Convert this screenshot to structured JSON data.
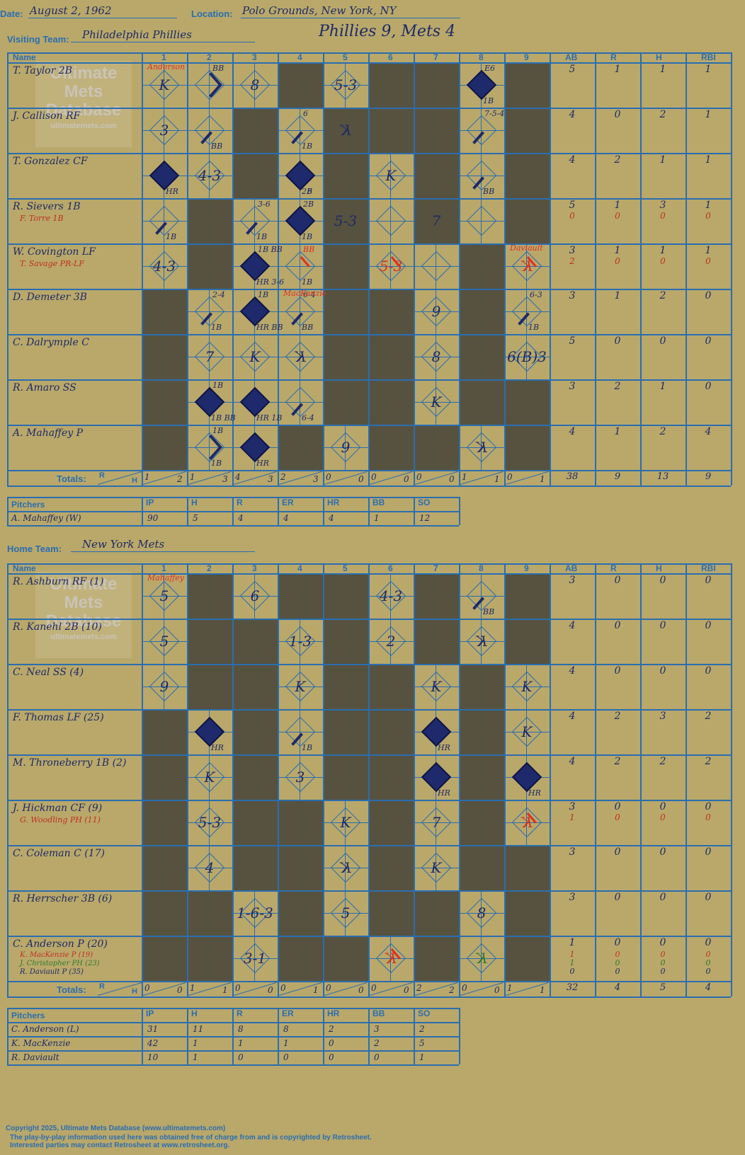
{
  "header": {
    "date_label": "Date:",
    "date": "August 2, 1962",
    "location_label": "Location:",
    "location": "Polo Grounds, New York, NY",
    "visiting_label": "Visiting Team:",
    "visiting_team": "Philadelphia Phillies",
    "result": "Phillies 9, Mets 4",
    "home_label": "Home Team:",
    "home_team": "New York Mets"
  },
  "watermark": {
    "line1": "Ultimate",
    "line2": "Mets",
    "line3": "Database",
    "line4": "ultimatemets.com"
  },
  "columns": {
    "name": "Name",
    "innings": [
      "1",
      "2",
      "3",
      "4",
      "5",
      "6",
      "7",
      "8",
      "9"
    ],
    "stats": [
      "AB",
      "R",
      "H",
      "RBI"
    ],
    "totals": "Totals:",
    "r": "R",
    "h": "H"
  },
  "pitch_cols": {
    "title": "Pitchers",
    "cols": [
      "IP",
      "H",
      "R",
      "ER",
      "HR",
      "BB",
      "SO"
    ]
  },
  "visitors": {
    "players": [
      {
        "name": "T. Taylor 2B",
        "stats": [
          "5",
          "1",
          "1",
          "1"
        ]
      },
      {
        "name": "J. Callison RF",
        "stats": [
          "4",
          "0",
          "2",
          "1"
        ]
      },
      {
        "name": "T. Gonzalez CF",
        "stats": [
          "4",
          "2",
          "1",
          "1"
        ]
      },
      {
        "name": "R. Sievers 1B",
        "sub": "F. Torre 1B",
        "stats": [
          "5",
          "1",
          "3",
          "1"
        ],
        "sub_stats": [
          "0",
          "0",
          "0",
          "0"
        ]
      },
      {
        "name": "W. Covington LF",
        "sub": "T. Savage PR-LF",
        "stats": [
          "3",
          "1",
          "1",
          "1"
        ],
        "sub_stats": [
          "2",
          "0",
          "0",
          "0"
        ]
      },
      {
        "name": "D. Demeter 3B",
        "stats": [
          "3",
          "1",
          "2",
          "0"
        ]
      },
      {
        "name": "C. Dalrymple C",
        "stats": [
          "5",
          "0",
          "0",
          "0"
        ]
      },
      {
        "name": "R. Amaro SS",
        "stats": [
          "3",
          "2",
          "1",
          "0"
        ]
      },
      {
        "name": "A. Mahaffey P",
        "stats": [
          "4",
          "1",
          "2",
          "4"
        ]
      }
    ],
    "totals": [
      [
        "1",
        "2"
      ],
      [
        "1",
        "3"
      ],
      [
        "4",
        "3"
      ],
      [
        "2",
        "3"
      ],
      [
        "0",
        "0"
      ],
      [
        "0",
        "0"
      ],
      [
        "0",
        "0"
      ],
      [
        "1",
        "1"
      ],
      [
        "0",
        "1"
      ]
    ],
    "total_stats": [
      "38",
      "9",
      "13",
      "9"
    ],
    "pitchers": [
      {
        "name": "A. Mahaffey (W)",
        "line": [
          "90",
          "5",
          "4",
          "4",
          "4",
          "1",
          "12"
        ]
      }
    ]
  },
  "home": {
    "players": [
      {
        "name": "R. Ashburn RF (1)",
        "stats": [
          "3",
          "0",
          "0",
          "0"
        ]
      },
      {
        "name": "R. Kanehl 2B (10)",
        "stats": [
          "4",
          "0",
          "0",
          "0"
        ]
      },
      {
        "name": "C. Neal SS (4)",
        "stats": [
          "4",
          "0",
          "0",
          "0"
        ]
      },
      {
        "name": "F. Thomas LF (25)",
        "stats": [
          "4",
          "2",
          "3",
          "2"
        ]
      },
      {
        "name": "M. Throneberry 1B (2)",
        "stats": [
          "4",
          "2",
          "2",
          "2"
        ]
      },
      {
        "name": "J. Hickman CF (9)",
        "sub": "G. Woodling PH (11)",
        "stats": [
          "3",
          "0",
          "0",
          "0"
        ],
        "sub_stats": [
          "1",
          "0",
          "0",
          "0"
        ]
      },
      {
        "name": "C. Coleman C (17)",
        "stats": [
          "3",
          "0",
          "0",
          "0"
        ]
      },
      {
        "name": "R. Herrscher 3B (6)",
        "stats": [
          "3",
          "0",
          "0",
          "0"
        ]
      },
      {
        "name": "C. Anderson P (20)",
        "subs": [
          "K. MacKenzie P (19)",
          "J. Christopher PH (23)",
          "R. Daviault P (35)"
        ],
        "stats": [
          "1",
          "0",
          "0",
          "0"
        ],
        "subs_stats": [
          [
            "1",
            "0",
            "0",
            "0"
          ],
          [
            "1",
            "0",
            "0",
            "0"
          ],
          [
            "0",
            "0",
            "0",
            "0"
          ]
        ]
      }
    ],
    "totals": [
      [
        "0",
        "0"
      ],
      [
        "1",
        "1"
      ],
      [
        "0",
        "0"
      ],
      [
        "0",
        "1"
      ],
      [
        "0",
        "0"
      ],
      [
        "0",
        "0"
      ],
      [
        "2",
        "2"
      ],
      [
        "0",
        "0"
      ],
      [
        "1",
        "1"
      ]
    ],
    "total_stats": [
      "32",
      "4",
      "5",
      "4"
    ],
    "pitchers": [
      {
        "name": "C. Anderson (L)",
        "line": [
          "31",
          "11",
          "8",
          "8",
          "2",
          "3",
          "2"
        ]
      },
      {
        "name": "K. MacKenzie",
        "line": [
          "42",
          "1",
          "1",
          "1",
          "0",
          "2",
          "5"
        ]
      },
      {
        "name": "R. Daviault",
        "line": [
          "10",
          "1",
          "0",
          "0",
          "0",
          "0",
          "1"
        ]
      }
    ]
  },
  "plays": {
    "v": [
      [
        {
          "m": "K",
          "n": "Anderson",
          "nc": "#E03020"
        },
        {
          "s": "BB",
          "bb": 1,
          "diag": 1
        },
        {
          "m": "8"
        },
        null,
        {
          "m": "5-3"
        },
        null,
        null,
        {
          "s": "E6",
          "run": 1,
          "b": "1B"
        },
        null
      ],
      [
        {
          "m": "3"
        },
        {
          "b": "BB",
          "half": 1
        },
        null,
        {
          "s": "6",
          "b": "1B",
          "half": 1
        },
        {
          "m": "K",
          "rev": 1
        },
        null,
        null,
        {
          "s": "7-5-4",
          "half": 1
        },
        null
      ],
      [
        {
          "run": 1,
          "b": "HR"
        },
        {
          "m": "4-3"
        },
        null,
        {
          "run": 1,
          "b": "2B",
          "b2": "6"
        },
        null,
        {
          "m": "K"
        },
        null,
        {
          "b": "BB",
          "half": 1
        },
        null
      ],
      [
        {
          "b": "1B",
          "half": 1
        },
        null,
        {
          "s": "3-6",
          "b": "1B",
          "half": 1
        },
        {
          "s": "2B",
          "run": 1,
          "b": "1B"
        },
        {
          "m": "5-3"
        },
        null,
        {
          "m": "7"
        },
        null,
        null
      ],
      [
        {
          "m": "4-3"
        },
        null,
        {
          "s": "1B BB",
          "run": 1,
          "b": "HR 3-6"
        },
        {
          "s": "BB",
          "sc": "#E03020",
          "b": "1B",
          "red": 1
        },
        null,
        {
          "m": "5-3",
          "red": 1
        },
        null,
        null,
        {
          "m": "K",
          "rev": 1,
          "red": 1,
          "n": "Daviault",
          "nc": "#E03020"
        }
      ],
      [
        null,
        {
          "s": "2-4",
          "b": "1B",
          "half": 1
        },
        {
          "s": "1B",
          "run": 1,
          "b": "HR BB"
        },
        {
          "s": "6-4",
          "n": "MacKenzie",
          "nc": "#E03020",
          "b": "BB",
          "half": 1
        },
        null,
        null,
        {
          "m": "9"
        },
        null,
        {
          "s": "6-3",
          "b": "1B",
          "half": 1
        }
      ],
      [
        null,
        {
          "m": "7"
        },
        {
          "m": "K"
        },
        {
          "m": "K",
          "rev": 1
        },
        null,
        null,
        {
          "m": "8"
        },
        null,
        {
          "m": "6(B)3"
        }
      ],
      [
        null,
        {
          "s": "1B",
          "run": 1,
          "b": "1B BB"
        },
        {
          "run": 1,
          "b": "HR 1B"
        },
        {
          "b": "6-4",
          "half": 1
        },
        null,
        null,
        {
          "m": "K"
        },
        null,
        null
      ],
      [
        null,
        {
          "s": "1B",
          "bb": 1,
          "diag": 1,
          "b": "1B"
        },
        {
          "run": 1,
          "b": "HR"
        },
        null,
        {
          "m": "9"
        },
        null,
        null,
        {
          "m": "K",
          "rev": 1
        },
        null
      ]
    ],
    "h": [
      [
        {
          "m": "5",
          "n": "Mahaffey",
          "nc": "#E03020"
        },
        null,
        {
          "m": "6"
        },
        null,
        null,
        {
          "m": "4-3"
        },
        null,
        {
          "b": "BB",
          "half": 1
        },
        null
      ],
      [
        {
          "m": "5"
        },
        null,
        null,
        {
          "m": "1-3"
        },
        null,
        {
          "m": "2"
        },
        null,
        {
          "m": "K",
          "rev": 1
        },
        null
      ],
      [
        {
          "m": "9"
        },
        null,
        null,
        {
          "m": "K"
        },
        null,
        null,
        {
          "m": "K"
        },
        null,
        {
          "m": "K"
        }
      ],
      [
        null,
        {
          "run": 1,
          "b": "HR"
        },
        null,
        {
          "b": "1B",
          "half": 1
        },
        null,
        null,
        {
          "run": 1,
          "b": "HR"
        },
        null,
        {
          "m": "K"
        }
      ],
      [
        null,
        {
          "m": "K"
        },
        null,
        {
          "m": "3"
        },
        null,
        null,
        {
          "run": 1,
          "b": "HR"
        },
        null,
        {
          "run": 1,
          "b": "HR"
        }
      ],
      [
        null,
        {
          "m": "5-3"
        },
        null,
        null,
        {
          "m": "K"
        },
        null,
        {
          "m": "7"
        },
        null,
        {
          "m": "K",
          "rev": 1,
          "red": 1
        }
      ],
      [
        null,
        {
          "m": "4"
        },
        null,
        null,
        {
          "m": "K",
          "rev": 1
        },
        null,
        {
          "m": "K"
        },
        null,
        null
      ],
      [
        null,
        null,
        {
          "m": "1-6-3"
        },
        null,
        {
          "m": "5"
        },
        null,
        null,
        {
          "m": "8"
        },
        null
      ],
      [
        null,
        null,
        {
          "m": "3-1"
        },
        null,
        null,
        {
          "m": "K",
          "rev": 1,
          "red": 1
        },
        null,
        {
          "m": "K",
          "rev": 1,
          "green": 1
        },
        null
      ]
    ]
  },
  "dark": {
    "v": [
      [
        4,
        6,
        7,
        9
      ],
      [
        3,
        5,
        6,
        7,
        9
      ],
      [
        3,
        5,
        7,
        9
      ],
      [
        2,
        5,
        7,
        9
      ],
      [
        2,
        5,
        8
      ],
      [
        1,
        5,
        6,
        8
      ],
      [
        1,
        5,
        6,
        8
      ],
      [
        1,
        5,
        6,
        8,
        9
      ],
      [
        1,
        4,
        6,
        7,
        9
      ]
    ],
    "h": [
      [
        2,
        4,
        5,
        7,
        9
      ],
      [
        2,
        3,
        5,
        7,
        9
      ],
      [
        2,
        3,
        5,
        6,
        8
      ],
      [
        1,
        3,
        5,
        6,
        8
      ],
      [
        1,
        3,
        5,
        6,
        8
      ],
      [
        1,
        3,
        4,
        6,
        8
      ],
      [
        1,
        3,
        4,
        6,
        8,
        9
      ],
      [
        1,
        2,
        4,
        6,
        7,
        9
      ],
      [
        1,
        2,
        4,
        5,
        7,
        9
      ]
    ]
  },
  "footer": {
    "line1": "Copyright 2025, Ultimate Mets Database (www.ultimatemets.com)",
    "line2": "The play-by-play information used here was obtained free of charge from and is copyrighted by Retrosheet.",
    "line3": "Interested parties may contact Retrosheet at www.retrosheet.org."
  }
}
